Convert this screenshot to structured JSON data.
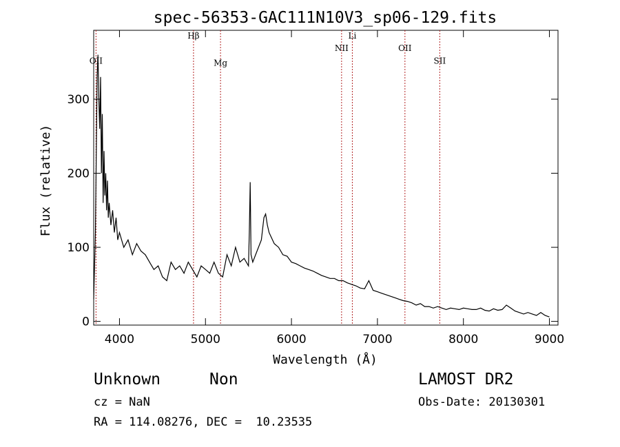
{
  "chart_data": {
    "type": "line",
    "title": "spec-56353-GAC111N10V3_sp06-129.fits",
    "xlabel": "Wavelength (Å)",
    "ylabel": "Flux (relative)",
    "xlim": [
      3700,
      9100
    ],
    "ylim": [
      -5,
      393
    ],
    "xticks": [
      4000,
      5000,
      6000,
      7000,
      8000,
      9000
    ],
    "yticks": [
      0,
      100,
      200,
      300
    ],
    "series": [
      {
        "x": [
          3700,
          3720,
          3740,
          3750,
          3760,
          3770,
          3780,
          3790,
          3800,
          3810,
          3820,
          3830,
          3840,
          3850,
          3860,
          3870,
          3880,
          3900,
          3920,
          3940,
          3960,
          3980,
          4000,
          4050,
          4100,
          4150,
          4200,
          4250,
          4300,
          4350,
          4400,
          4450,
          4500,
          4550,
          4600,
          4650,
          4700,
          4750,
          4800,
          4850,
          4900,
          4950,
          5000,
          5050,
          5100,
          5150,
          5200,
          5250,
          5300,
          5350,
          5400,
          5450,
          5500,
          5510,
          5520,
          5530,
          5550,
          5600,
          5650,
          5680,
          5700,
          5720,
          5740,
          5760,
          5800,
          5850,
          5900,
          5950,
          6000,
          6050,
          6100,
          6150,
          6200,
          6250,
          6300,
          6350,
          6400,
          6450,
          6500,
          6550,
          6600,
          6650,
          6700,
          6750,
          6800,
          6850,
          6900,
          6950,
          7000,
          7050,
          7100,
          7150,
          7200,
          7250,
          7300,
          7350,
          7400,
          7450,
          7500,
          7550,
          7600,
          7650,
          7700,
          7750,
          7800,
          7850,
          7900,
          7950,
          8000,
          8050,
          8100,
          8150,
          8200,
          8250,
          8300,
          8350,
          8400,
          8450,
          8500,
          8550,
          8600,
          8650,
          8700,
          8750,
          8800,
          8850,
          8900,
          8950,
          9000
        ],
        "y": [
          30,
          120,
          330,
          360,
          300,
          260,
          330,
          200,
          280,
          160,
          230,
          170,
          200,
          150,
          190,
          140,
          160,
          130,
          150,
          120,
          140,
          110,
          120,
          100,
          110,
          90,
          105,
          95,
          90,
          80,
          70,
          75,
          60,
          55,
          80,
          70,
          75,
          65,
          80,
          70,
          60,
          75,
          70,
          65,
          80,
          65,
          60,
          90,
          75,
          100,
          80,
          85,
          75,
          120,
          188,
          90,
          80,
          95,
          110,
          140,
          145,
          130,
          120,
          115,
          105,
          100,
          90,
          88,
          80,
          78,
          75,
          72,
          70,
          68,
          65,
          62,
          60,
          58,
          58,
          55,
          55,
          52,
          50,
          48,
          45,
          44,
          55,
          42,
          40,
          38,
          36,
          34,
          32,
          30,
          28,
          27,
          25,
          22,
          24,
          20,
          20,
          18,
          20,
          18,
          16,
          18,
          17,
          16,
          18,
          17,
          16,
          16,
          18,
          15,
          14,
          17,
          15,
          16,
          22,
          18,
          14,
          12,
          10,
          12,
          10,
          8,
          12,
          8,
          6
        ]
      }
    ],
    "lines": [
      {
        "label": "OII",
        "x": 3727,
        "label_y": 348
      },
      {
        "label": "Hβ",
        "x": 4861,
        "label_y": 382
      },
      {
        "label": "Mg",
        "x": 5175,
        "label_y": 345
      },
      {
        "label": "NII",
        "x": 6583,
        "label_y": 365
      },
      {
        "label": "Li",
        "x": 6708,
        "label_y": 382
      },
      {
        "label": "OII",
        "x": 7320,
        "label_y": 365
      },
      {
        "label": "SII",
        "x": 7725,
        "label_y": 348
      }
    ]
  },
  "info": {
    "class": "Unknown",
    "subclass": "Non",
    "survey": "LAMOST DR2",
    "cz": "cz = NaN",
    "obs_date": "Obs-Date: 20130301",
    "coords": "RA = 114.08276, DEC =  10.23535"
  }
}
